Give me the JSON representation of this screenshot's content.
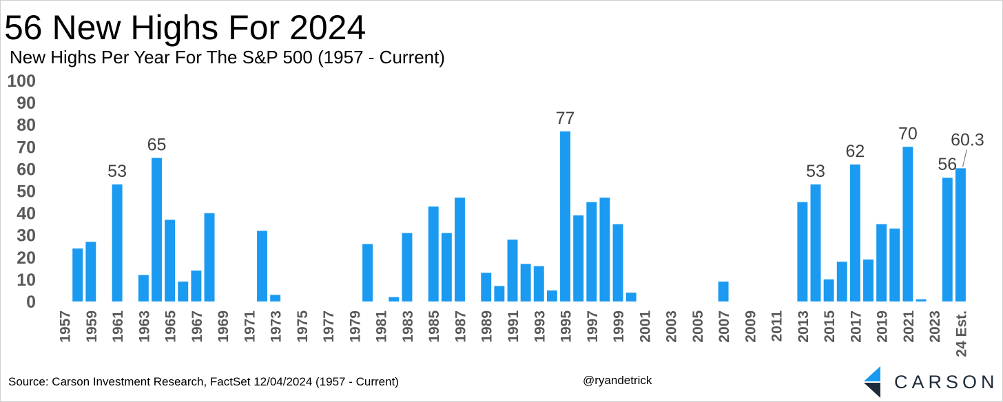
{
  "header": {
    "title": "56 New Highs For 2024",
    "subtitle": "New Highs Per Year For The S&P 500 (1957 - Current)"
  },
  "footer": {
    "source": "Source: Carson Investment Research, FactSet 12/04/2024 (1957 - Current)",
    "handle": "@ryandetrick",
    "logo_text": "CARSON"
  },
  "colors": {
    "bar": "#1a9af0",
    "axis_text": "#595959",
    "label_text": "#404040",
    "logo_dark": "#1f2b3a",
    "logo_light": "#1a9af0"
  },
  "chart_data": {
    "type": "bar",
    "title": "56 New Highs For 2024",
    "subtitle": "New Highs Per Year For The S&P 500 (1957 - Current)",
    "xlabel": "",
    "ylabel": "",
    "ylim": [
      0,
      100
    ],
    "yticks": [
      0,
      10,
      20,
      30,
      40,
      50,
      60,
      70,
      80,
      90,
      100
    ],
    "grid": false,
    "categories": [
      "1957",
      "1958",
      "1959",
      "1960",
      "1961",
      "1962",
      "1963",
      "1964",
      "1965",
      "1966",
      "1967",
      "1968",
      "1969",
      "1970",
      "1971",
      "1972",
      "1973",
      "1974",
      "1975",
      "1976",
      "1977",
      "1978",
      "1979",
      "1980",
      "1981",
      "1982",
      "1983",
      "1984",
      "1985",
      "1986",
      "1987",
      "1988",
      "1989",
      "1990",
      "1991",
      "1992",
      "1993",
      "1994",
      "1995",
      "1996",
      "1997",
      "1998",
      "1999",
      "2000",
      "2001",
      "2002",
      "2003",
      "2004",
      "2005",
      "2006",
      "2007",
      "2008",
      "2009",
      "2010",
      "2011",
      "2012",
      "2013",
      "2014",
      "2015",
      "2016",
      "2017",
      "2018",
      "2019",
      "2020",
      "2021",
      "2022",
      "2023",
      "2024",
      "24 Est."
    ],
    "tick_labels": [
      "1957",
      "",
      "1959",
      "",
      "1961",
      "",
      "1963",
      "",
      "1965",
      "",
      "1967",
      "",
      "1969",
      "",
      "1971",
      "",
      "1973",
      "",
      "1975",
      "",
      "1977",
      "",
      "1979",
      "",
      "1981",
      "",
      "1983",
      "",
      "1985",
      "",
      "1987",
      "",
      "1989",
      "",
      "1991",
      "",
      "1993",
      "",
      "1995",
      "",
      "1997",
      "",
      "1999",
      "",
      "2001",
      "",
      "2003",
      "",
      "2005",
      "",
      "2007",
      "",
      "2009",
      "",
      "2011",
      "",
      "2013",
      "",
      "2015",
      "",
      "2017",
      "",
      "2019",
      "",
      "2021",
      "",
      "2023",
      "",
      "24 Est."
    ],
    "values": [
      0,
      24,
      27,
      0,
      53,
      0,
      12,
      65,
      37,
      9,
      14,
      40,
      0,
      0,
      0,
      32,
      3,
      0,
      0,
      0,
      0,
      0,
      0,
      26,
      0,
      2,
      31,
      0,
      43,
      31,
      47,
      0,
      13,
      7,
      28,
      17,
      16,
      5,
      77,
      39,
      45,
      47,
      35,
      4,
      0,
      0,
      0,
      0,
      0,
      0,
      9,
      0,
      0,
      0,
      0,
      0,
      45,
      53,
      10,
      18,
      62,
      19,
      35,
      33,
      70,
      1,
      0,
      56,
      60.3
    ],
    "data_labels": [
      {
        "category": "1961",
        "text": "53"
      },
      {
        "category": "1964",
        "text": "65"
      },
      {
        "category": "1995",
        "text": "77"
      },
      {
        "category": "2014",
        "text": "53"
      },
      {
        "category": "2017",
        "text": "62"
      },
      {
        "category": "2021",
        "text": "70"
      },
      {
        "category": "2024",
        "text": "56"
      },
      {
        "category": "24 Est.",
        "text": "60.3"
      }
    ]
  }
}
